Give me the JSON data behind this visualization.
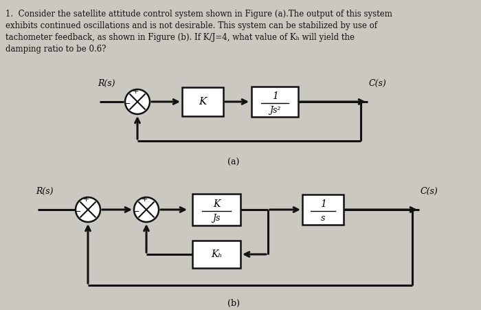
{
  "bg_color": "#cac8c0",
  "text_color": "#111111",
  "line_color": "#111111",
  "title_lines": [
    "1.  Consider the satellite attitude control system shown in Figure (a).The output of this system",
    "exhibits continued oscillations and is not desirable. This system can be stabilized by use of",
    "tachometer feedback, as shown in Figure (b). If K/J=4, what value of Kₕ will yield the",
    "damping ratio to be 0.6?"
  ],
  "label_a": "(a)",
  "label_b": "(b)",
  "diag_a": {
    "Rs": "R(s)",
    "Cs": "C(s)",
    "block_K": "K",
    "block_Js2_top": "1",
    "block_Js2_bot": "Js²"
  },
  "diag_b": {
    "Rs": "R(s)",
    "Cs": "C(s)",
    "block_KJs_top": "K",
    "block_KJs_bot": "Js",
    "block_1s_top": "1",
    "block_1s_bot": "s",
    "block_Kh": "Kₕ"
  }
}
